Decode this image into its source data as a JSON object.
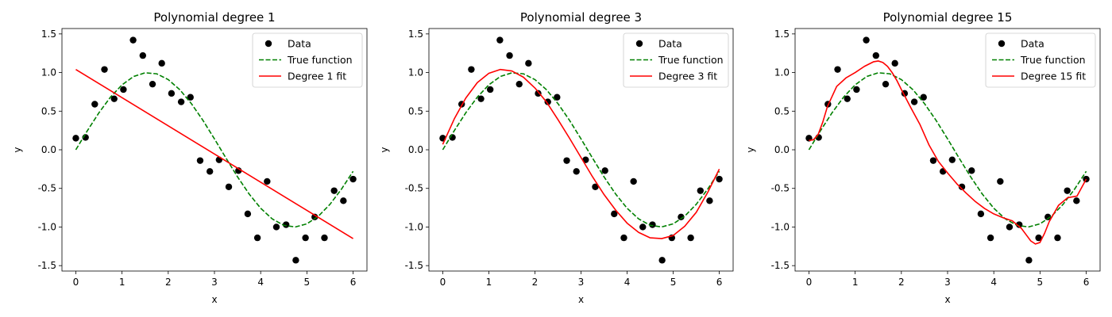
{
  "chart_data": [
    {
      "type": "scatter",
      "title": "Polynomial degree 1",
      "xlabel": "x",
      "ylabel": "y",
      "xlim": [
        -0.3,
        6.3
      ],
      "ylim": [
        -1.57,
        1.57
      ],
      "xticks": [
        0,
        1,
        2,
        3,
        4,
        5,
        6
      ],
      "yticks": [
        -1.5,
        -1.0,
        -0.5,
        0.0,
        0.5,
        1.0,
        1.5
      ],
      "legend_position": "top-right",
      "series": [
        {
          "name": "Data",
          "kind": "scatter",
          "color": "#000000",
          "x": [
            0.0,
            0.21,
            0.41,
            0.62,
            0.83,
            1.03,
            1.24,
            1.45,
            1.66,
            1.86,
            2.07,
            2.28,
            2.48,
            2.69,
            2.9,
            3.1,
            3.31,
            3.52,
            3.72,
            3.93,
            4.14,
            4.34,
            4.55,
            4.76,
            4.97,
            5.17,
            5.38,
            5.59,
            5.79,
            6.0
          ],
          "y": [
            0.15,
            0.16,
            0.59,
            1.04,
            0.66,
            0.78,
            1.42,
            1.22,
            0.85,
            1.12,
            0.73,
            0.62,
            0.68,
            -0.14,
            -0.28,
            -0.13,
            -0.48,
            -0.27,
            -0.83,
            -1.14,
            -0.41,
            -1.0,
            -0.97,
            -1.43,
            -1.14,
            -0.87,
            -1.14,
            -0.53,
            -0.66,
            -0.38
          ]
        },
        {
          "name": "True function",
          "kind": "line",
          "style": "dashed",
          "color": "#008000",
          "x": [
            0.0,
            0.25,
            0.5,
            0.75,
            1.0,
            1.25,
            1.5,
            1.75,
            2.0,
            2.25,
            2.5,
            2.75,
            3.0,
            3.25,
            3.5,
            3.75,
            4.0,
            4.25,
            4.5,
            4.75,
            5.0,
            5.25,
            5.5,
            5.75,
            6.0
          ],
          "y": [
            0.0,
            0.247,
            0.479,
            0.682,
            0.841,
            0.949,
            0.997,
            0.984,
            0.909,
            0.778,
            0.598,
            0.382,
            0.141,
            -0.108,
            -0.351,
            -0.572,
            -0.757,
            -0.895,
            -0.978,
            -0.999,
            -0.959,
            -0.859,
            -0.706,
            -0.508,
            -0.279
          ]
        },
        {
          "name": "Degree 1 fit",
          "kind": "line",
          "style": "solid",
          "color": "#ff0000",
          "x": [
            0.0,
            6.0
          ],
          "y": [
            1.04,
            -1.15
          ]
        }
      ]
    },
    {
      "type": "scatter",
      "title": "Polynomial degree 3",
      "xlabel": "x",
      "ylabel": "y",
      "xlim": [
        -0.3,
        6.3
      ],
      "ylim": [
        -1.57,
        1.57
      ],
      "xticks": [
        0,
        1,
        2,
        3,
        4,
        5,
        6
      ],
      "yticks": [
        -1.5,
        -1.0,
        -0.5,
        0.0,
        0.5,
        1.0,
        1.5
      ],
      "legend_position": "top-right",
      "series": [
        {
          "name": "Data",
          "kind": "scatter",
          "color": "#000000",
          "x": [
            0.0,
            0.21,
            0.41,
            0.62,
            0.83,
            1.03,
            1.24,
            1.45,
            1.66,
            1.86,
            2.07,
            2.28,
            2.48,
            2.69,
            2.9,
            3.1,
            3.31,
            3.52,
            3.72,
            3.93,
            4.14,
            4.34,
            4.55,
            4.76,
            4.97,
            5.17,
            5.38,
            5.59,
            5.79,
            6.0
          ],
          "y": [
            0.15,
            0.16,
            0.59,
            1.04,
            0.66,
            0.78,
            1.42,
            1.22,
            0.85,
            1.12,
            0.73,
            0.62,
            0.68,
            -0.14,
            -0.28,
            -0.13,
            -0.48,
            -0.27,
            -0.83,
            -1.14,
            -0.41,
            -1.0,
            -0.97,
            -1.43,
            -1.14,
            -0.87,
            -1.14,
            -0.53,
            -0.66,
            -0.38
          ]
        },
        {
          "name": "True function",
          "kind": "line",
          "style": "dashed",
          "color": "#008000",
          "x": [
            0.0,
            0.25,
            0.5,
            0.75,
            1.0,
            1.25,
            1.5,
            1.75,
            2.0,
            2.25,
            2.5,
            2.75,
            3.0,
            3.25,
            3.5,
            3.75,
            4.0,
            4.25,
            4.5,
            4.75,
            5.0,
            5.25,
            5.5,
            5.75,
            6.0
          ],
          "y": [
            0.0,
            0.247,
            0.479,
            0.682,
            0.841,
            0.949,
            0.997,
            0.984,
            0.909,
            0.778,
            0.598,
            0.382,
            0.141,
            -0.108,
            -0.351,
            -0.572,
            -0.757,
            -0.895,
            -0.978,
            -0.999,
            -0.959,
            -0.859,
            -0.706,
            -0.508,
            -0.279
          ]
        },
        {
          "name": "Degree 3 fit",
          "kind": "line",
          "style": "solid",
          "color": "#ff0000",
          "x": [
            0.0,
            0.25,
            0.5,
            0.75,
            1.0,
            1.25,
            1.5,
            1.75,
            2.0,
            2.25,
            2.5,
            2.75,
            3.0,
            3.25,
            3.5,
            3.75,
            4.0,
            4.25,
            4.5,
            4.75,
            5.0,
            5.25,
            5.5,
            5.75,
            6.0
          ],
          "y": [
            0.07,
            0.4,
            0.67,
            0.87,
            0.99,
            1.04,
            1.02,
            0.94,
            0.8,
            0.62,
            0.39,
            0.15,
            -0.1,
            -0.35,
            -0.58,
            -0.78,
            -0.95,
            -1.07,
            -1.14,
            -1.15,
            -1.11,
            -0.99,
            -0.81,
            -0.55,
            -0.25
          ]
        }
      ]
    },
    {
      "type": "scatter",
      "title": "Polynomial degree 15",
      "xlabel": "x",
      "ylabel": "y",
      "xlim": [
        -0.3,
        6.3
      ],
      "ylim": [
        -1.57,
        1.57
      ],
      "xticks": [
        0,
        1,
        2,
        3,
        4,
        5,
        6
      ],
      "yticks": [
        -1.5,
        -1.0,
        -0.5,
        0.0,
        0.5,
        1.0,
        1.5
      ],
      "legend_position": "top-right",
      "series": [
        {
          "name": "Data",
          "kind": "scatter",
          "color": "#000000",
          "x": [
            0.0,
            0.21,
            0.41,
            0.62,
            0.83,
            1.03,
            1.24,
            1.45,
            1.66,
            1.86,
            2.07,
            2.28,
            2.48,
            2.69,
            2.9,
            3.1,
            3.31,
            3.52,
            3.72,
            3.93,
            4.14,
            4.34,
            4.55,
            4.76,
            4.97,
            5.17,
            5.38,
            5.59,
            5.79,
            6.0
          ],
          "y": [
            0.15,
            0.16,
            0.59,
            1.04,
            0.66,
            0.78,
            1.42,
            1.22,
            0.85,
            1.12,
            0.73,
            0.62,
            0.68,
            -0.14,
            -0.28,
            -0.13,
            -0.48,
            -0.27,
            -0.83,
            -1.14,
            -0.41,
            -1.0,
            -0.97,
            -1.43,
            -1.14,
            -0.87,
            -1.14,
            -0.53,
            -0.66,
            -0.38
          ]
        },
        {
          "name": "True function",
          "kind": "line",
          "style": "dashed",
          "color": "#008000",
          "x": [
            0.0,
            0.25,
            0.5,
            0.75,
            1.0,
            1.25,
            1.5,
            1.75,
            2.0,
            2.25,
            2.5,
            2.75,
            3.0,
            3.25,
            3.5,
            3.75,
            4.0,
            4.25,
            4.5,
            4.75,
            5.0,
            5.25,
            5.5,
            5.75,
            6.0
          ],
          "y": [
            0.0,
            0.247,
            0.479,
            0.682,
            0.841,
            0.949,
            0.997,
            0.984,
            0.909,
            0.778,
            0.598,
            0.382,
            0.141,
            -0.108,
            -0.351,
            -0.572,
            -0.757,
            -0.895,
            -0.978,
            -0.999,
            -0.959,
            -0.859,
            -0.706,
            -0.508,
            -0.279
          ]
        },
        {
          "name": "Degree 15 fit",
          "kind": "line",
          "style": "solid",
          "color": "#ff0000",
          "x": [
            0.0,
            0.1,
            0.2,
            0.3,
            0.4,
            0.6,
            0.8,
            1.0,
            1.2,
            1.4,
            1.5,
            1.6,
            1.7,
            1.8,
            1.9,
            2.0,
            2.2,
            2.4,
            2.6,
            2.8,
            3.0,
            3.2,
            3.4,
            3.6,
            3.8,
            4.0,
            4.2,
            4.4,
            4.6,
            4.7,
            4.8,
            4.9,
            5.0,
            5.1,
            5.2,
            5.4,
            5.6,
            5.8,
            6.0
          ],
          "y": [
            0.12,
            0.13,
            0.2,
            0.36,
            0.56,
            0.82,
            0.93,
            1.0,
            1.08,
            1.14,
            1.15,
            1.13,
            1.08,
            1.0,
            0.9,
            0.78,
            0.55,
            0.33,
            0.06,
            -0.15,
            -0.3,
            -0.44,
            -0.56,
            -0.67,
            -0.76,
            -0.83,
            -0.88,
            -0.92,
            -1.02,
            -1.1,
            -1.18,
            -1.22,
            -1.2,
            -1.08,
            -0.93,
            -0.72,
            -0.62,
            -0.6,
            -0.38
          ]
        }
      ]
    }
  ]
}
